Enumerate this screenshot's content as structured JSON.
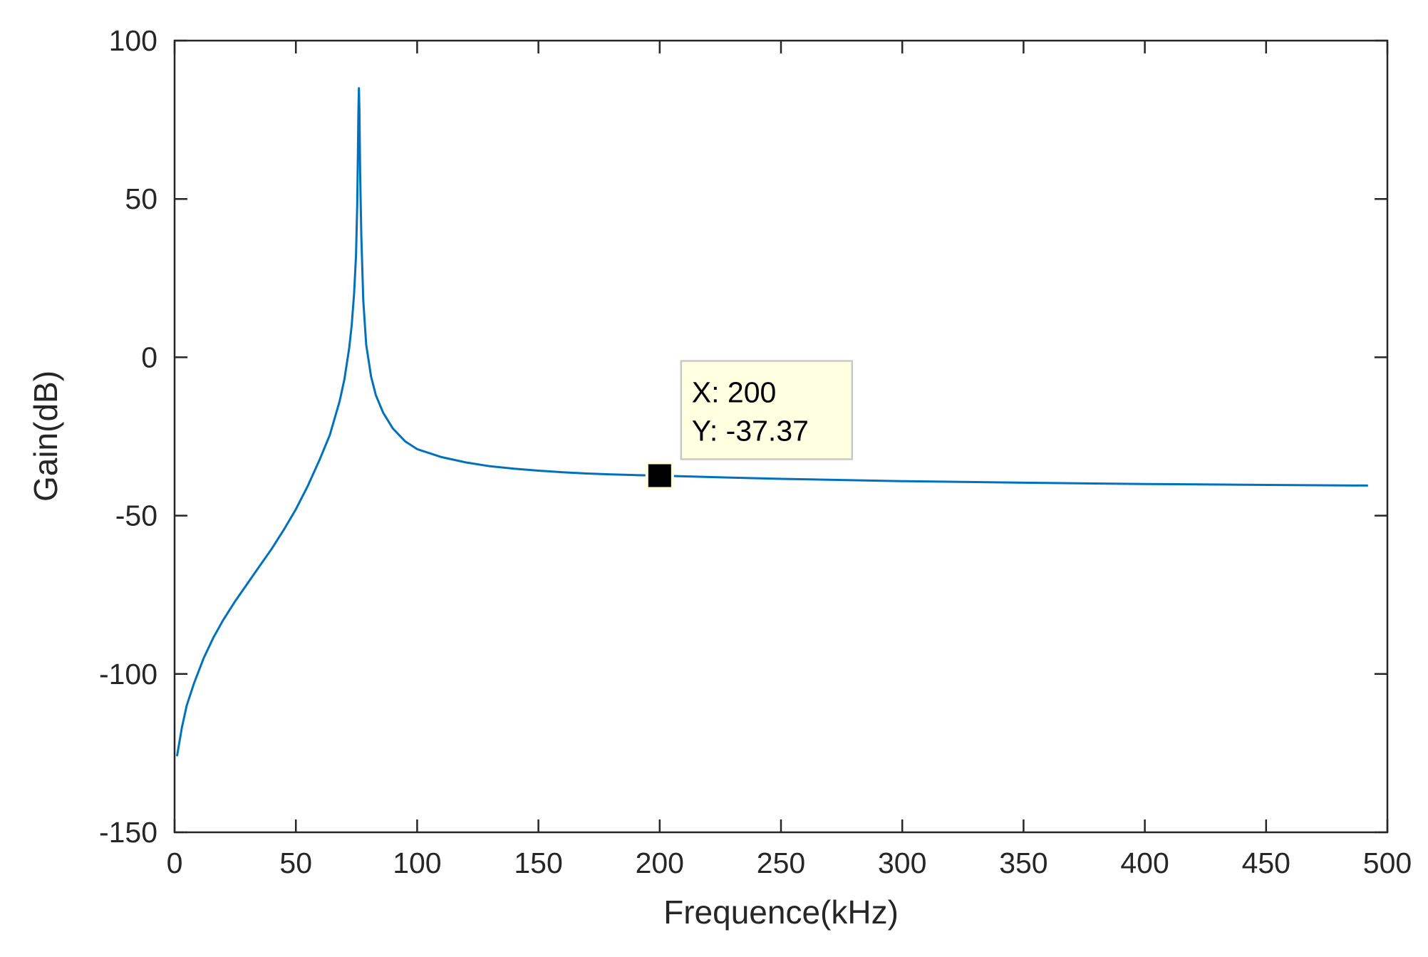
{
  "chart_data": {
    "type": "line",
    "title": "",
    "xlabel": "Frequence(kHz)",
    "ylabel": "Gain(dB)",
    "xlim": [
      0,
      500
    ],
    "ylim": [
      -150,
      100
    ],
    "xticks": [
      0,
      50,
      100,
      150,
      200,
      250,
      300,
      350,
      400,
      450,
      500
    ],
    "yticks": [
      100,
      50,
      0,
      -50,
      -100,
      -150
    ],
    "grid": false,
    "series": [
      {
        "color": "#0072bd",
        "x": [
          1,
          3,
          5,
          8,
          12,
          16,
          20,
          25,
          30,
          35,
          40,
          45,
          50,
          55,
          60,
          64,
          68,
          70,
          72,
          73,
          74,
          74.8,
          75.3,
          75.6,
          75.8,
          76,
          76.2,
          76.5,
          77,
          77.8,
          79,
          81,
          83,
          86,
          90,
          95,
          100,
          110,
          120,
          130,
          140,
          150,
          160,
          170,
          180,
          190,
          200,
          220,
          250,
          300,
          350,
          400,
          450,
          492
        ],
        "y": [
          -126,
          -117,
          -110,
          -103,
          -95,
          -88.5,
          -83,
          -77,
          -71.5,
          -66,
          -60.5,
          -54.5,
          -48,
          -40.5,
          -32,
          -24.5,
          -14,
          -7,
          3,
          10,
          20,
          32,
          48,
          65,
          78,
          85,
          78,
          58,
          38,
          18,
          4,
          -6,
          -12,
          -17.5,
          -22.5,
          -26.5,
          -29,
          -31.5,
          -33.2,
          -34.4,
          -35.2,
          -35.8,
          -36.3,
          -36.7,
          -37.0,
          -37.2,
          -37.37,
          -37.8,
          -38.4,
          -39.1,
          -39.6,
          -40.0,
          -40.3,
          -40.5
        ]
      }
    ],
    "datatip": {
      "x_text": "X: 200",
      "y_text": "Y: -37.37",
      "x": 200,
      "y": -37.37
    }
  }
}
